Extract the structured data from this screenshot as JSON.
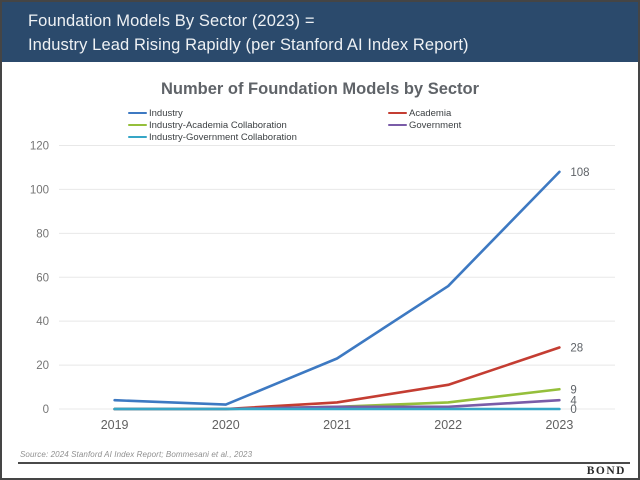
{
  "slide": {
    "header": {
      "title_line1": "Foundation Models By Sector (2023) =",
      "title_line2": "Industry Lead Rising Rapidly (per Stanford AI Index Report)",
      "background_color": "#2b4a6c"
    },
    "footer": {
      "source": "Source: 2024 Stanford AI Index Report; Bommesani et al., 2023",
      "brand": "BOND"
    }
  },
  "chart_data": {
    "type": "line",
    "title": "Number of Foundation Models by Sector",
    "categories": [
      "2019",
      "2020",
      "2021",
      "2022",
      "2023"
    ],
    "series": [
      {
        "name": "Industry",
        "color": "#3d79c2",
        "values": [
          4,
          2,
          23,
          56,
          108
        ],
        "end_label": "108"
      },
      {
        "name": "Academia",
        "color": "#c43d32",
        "values": [
          0,
          0,
          3,
          11,
          28
        ],
        "end_label": "28"
      },
      {
        "name": "Industry-Academia Collaboration",
        "color": "#95bf3b",
        "values": [
          0,
          0,
          1,
          3,
          9
        ],
        "end_label": "9"
      },
      {
        "name": "Government",
        "color": "#7a5ca8",
        "values": [
          0,
          0,
          1,
          1,
          4
        ],
        "end_label": "4"
      },
      {
        "name": "Industry-Government Collaboration",
        "color": "#36a6c6",
        "values": [
          0,
          0,
          0,
          0,
          0
        ],
        "end_label": "0"
      }
    ],
    "xlabel": "",
    "ylabel": "",
    "ylim": [
      0,
      120
    ],
    "yticks": [
      0,
      20,
      40,
      60,
      80,
      100,
      120
    ],
    "grid": true,
    "legend_position": "top",
    "legend_columns": {
      "left": [
        "Industry",
        "Industry-Academia Collaboration",
        "Industry-Government Collaboration"
      ],
      "right": [
        "Academia",
        "Government"
      ]
    }
  }
}
